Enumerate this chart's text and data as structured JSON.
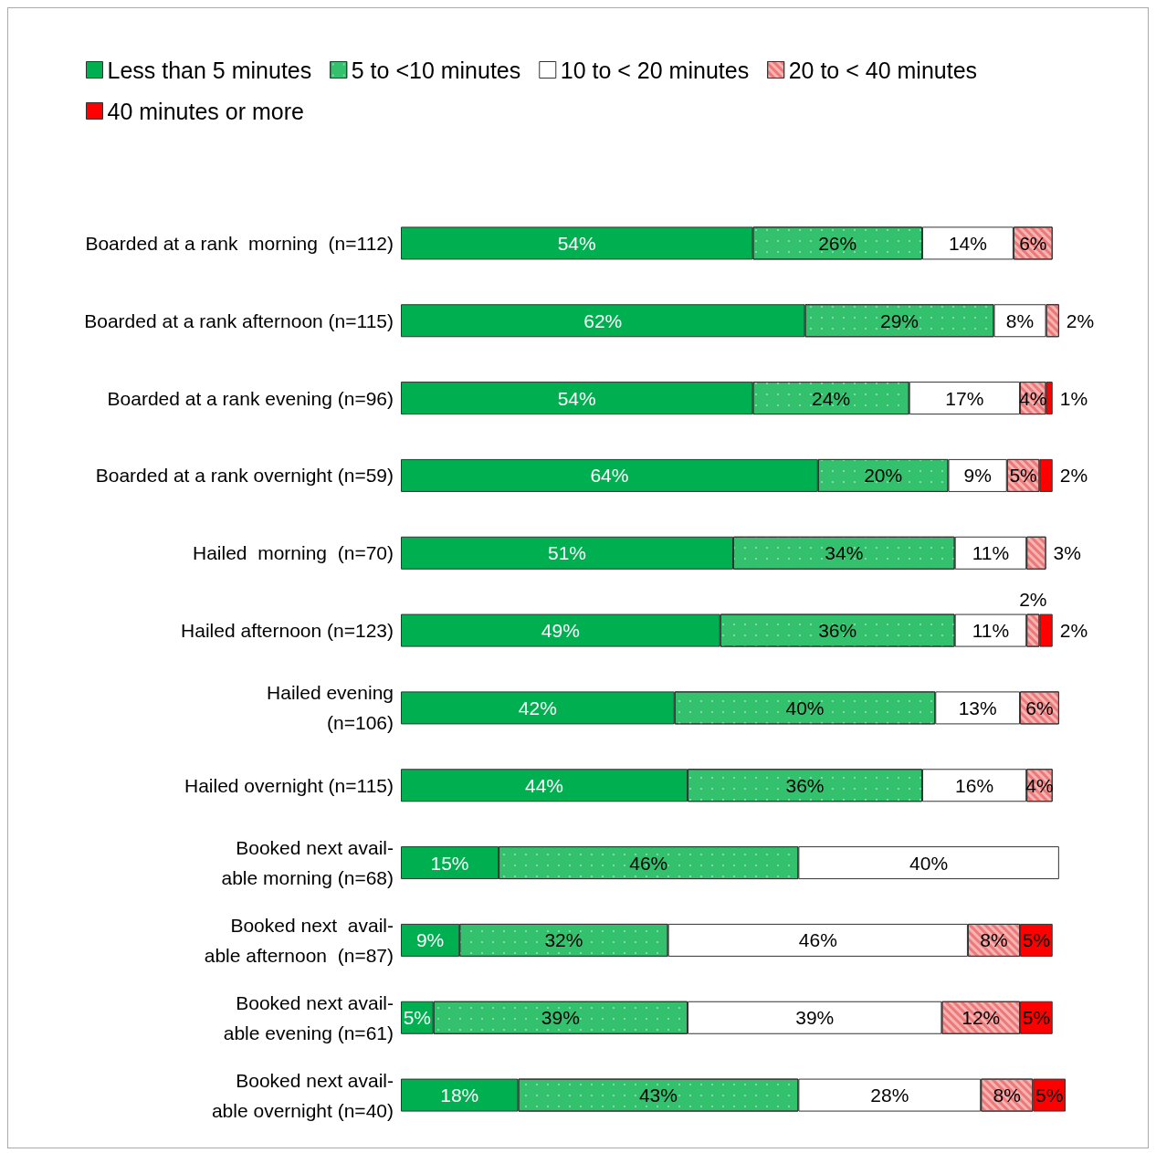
{
  "chart_data": {
    "type": "bar",
    "orientation": "horizontal",
    "stacked": true,
    "legend": "top",
    "tick_labels": "y",
    "xlim": [
      0,
      102
    ],
    "categories": [
      "Boarded at a rank  morning  (n=112)",
      "Boarded at a rank afternoon (n=115)",
      "Boarded at a rank evening (n=96)",
      "Boarded at a rank overnight (n=59)",
      "Hailed  morning  (n=70)",
      "Hailed afternoon (n=123)",
      "Hailed evening\n(n=106)",
      "Hailed overnight (n=115)",
      "Booked next avail-\nable morning (n=68)",
      "Booked next  avail-\nable afternoon  (n=87)",
      "Booked next avail-\nable evening (n=61)",
      "Booked next avail-\nable overnight (n=40)"
    ],
    "series": [
      {
        "name": "Less than 5 minutes",
        "color": "#00b050",
        "values": [
          54,
          62,
          54,
          64,
          51,
          49,
          42,
          44,
          15,
          9,
          5,
          18
        ],
        "value_labels": [
          "54%",
          "62%",
          "54%",
          "64%",
          "51%",
          "49%",
          "42%",
          "44%",
          "15%",
          "9%",
          "5%",
          "18%"
        ]
      },
      {
        "name": "5 to <10 minutes",
        "color": "#33c16e",
        "values": [
          26,
          29,
          24,
          20,
          34,
          36,
          40,
          36,
          46,
          32,
          39,
          43
        ],
        "value_labels": [
          "26%",
          "29%",
          "24%",
          "20%",
          "34%",
          "36%",
          "40%",
          "36%",
          "46%",
          "32%",
          "39%",
          "43%"
        ]
      },
      {
        "name": "10 to < 20 minutes",
        "color": "#ffffff",
        "values": [
          14,
          8,
          17,
          9,
          11,
          11,
          13,
          16,
          40,
          46,
          39,
          28
        ],
        "value_labels": [
          "14%",
          "8%",
          "17%",
          "9%",
          "11%",
          "11%",
          "13%",
          "16%",
          "40%",
          "46%",
          "39%",
          "28%"
        ]
      },
      {
        "name": "20 to < 40 minutes",
        "color": "#f4b4b4",
        "values": [
          6,
          2,
          4,
          5,
          3,
          2,
          6,
          4,
          null,
          8,
          12,
          8
        ],
        "value_labels": [
          "6%",
          "2%",
          "4%",
          "5%",
          "3%",
          "2%",
          "6%",
          "4%",
          null,
          "8%",
          "12%",
          "8%"
        ]
      },
      {
        "name": "40 minutes or more",
        "color": "#ff0000",
        "values": [
          null,
          null,
          1,
          2,
          null,
          2,
          null,
          null,
          null,
          5,
          5,
          5
        ],
        "value_labels": [
          null,
          null,
          "1%",
          "2%",
          null,
          "2%",
          null,
          null,
          null,
          "5%",
          "5%",
          "5%"
        ]
      }
    ]
  }
}
